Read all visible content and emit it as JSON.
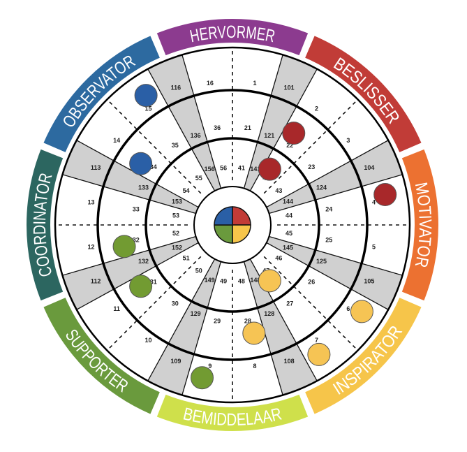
{
  "roles": [
    {
      "label": "HERVORMER",
      "color": "#8c3b8f"
    },
    {
      "label": "BESLISSER",
      "color": "#c13c37"
    },
    {
      "label": "MOTIVATOR",
      "color": "#ec7131"
    },
    {
      "label": "INSPIRATOR",
      "color": "#f6c54a"
    },
    {
      "label": "BEMIDDELAAR",
      "color": "#cfe04b"
    },
    {
      "label": "SUPPORTER",
      "color": "#6a9a3d"
    },
    {
      "label": "COORDINATOR",
      "color": "#2c6660"
    },
    {
      "label": "OBSERVATOR",
      "color": "#2d6aa0"
    }
  ],
  "center_quadrants": {
    "top_left": "#2a5fa6",
    "top_right": "#c23b37",
    "bottom_left": "#6a9a3d",
    "bottom_right": "#f6c54a"
  },
  "rings": [
    {
      "name": "outer",
      "half_labels": [
        "1",
        "2",
        "3",
        "4",
        "5",
        "6",
        "7",
        "8",
        "9",
        "10",
        "11",
        "12",
        "13",
        "14",
        "15",
        "16"
      ],
      "wedge_labels": [
        "101",
        "104",
        "105",
        "108",
        "109",
        "112",
        "113",
        "116"
      ]
    },
    {
      "name": "middle",
      "half_labels": [
        "21",
        "22",
        "23",
        "24",
        "25",
        "26",
        "27",
        "28",
        "29",
        "30",
        "31",
        "32",
        "33",
        "34",
        "35",
        "36"
      ],
      "wedge_labels": [
        "121",
        "124",
        "125",
        "128",
        "129",
        "132",
        "133",
        "136"
      ]
    },
    {
      "name": "inner",
      "half_labels": [
        "41",
        "42",
        "43",
        "44",
        "45",
        "46",
        "47",
        "48",
        "49",
        "50",
        "51",
        "52",
        "53",
        "54",
        "55",
        "56"
      ],
      "wedge_labels": [
        "141",
        "144",
        "145",
        "148",
        "149",
        "152",
        "153",
        "156"
      ]
    }
  ],
  "marker_colors": {
    "blue": "#2a5fa6",
    "red": "#a8282a",
    "green": "#729b32",
    "yellow": "#f6c454"
  },
  "markers": [
    {
      "cell": 15,
      "color": "blue"
    },
    {
      "cell": 34,
      "color": "blue"
    },
    {
      "cell": 42,
      "color": "red"
    },
    {
      "cell": 22,
      "color": "red"
    },
    {
      "cell": 4,
      "color": "red"
    },
    {
      "cell": 32,
      "color": "green"
    },
    {
      "cell": 31,
      "color": "green"
    },
    {
      "cell": 9,
      "color": "green"
    },
    {
      "cell": 47,
      "color": "yellow"
    },
    {
      "cell": 28,
      "color": "yellow"
    },
    {
      "cell": 6,
      "color": "yellow"
    },
    {
      "cell": 7,
      "color": "yellow"
    }
  ]
}
